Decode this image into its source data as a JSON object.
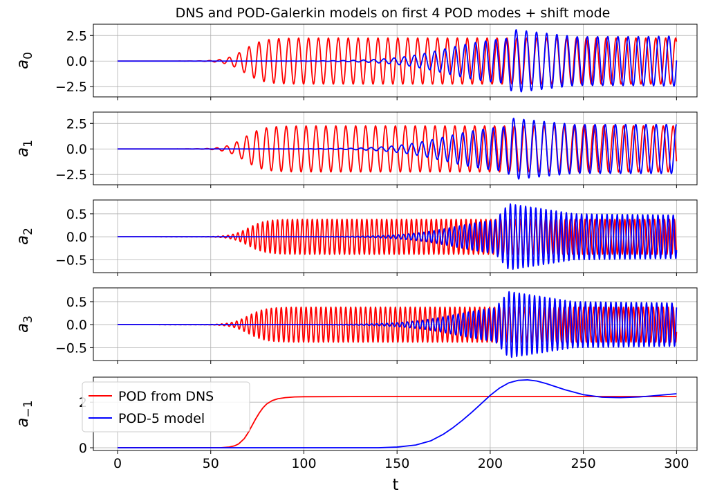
{
  "chart_data": {
    "type": "line",
    "title": "DNS and POD-Galerkin models on first 4 POD modes + shift mode",
    "xlabel": "t",
    "xlim": [
      -13,
      311
    ],
    "xticks": [
      0,
      50,
      100,
      150,
      200,
      250,
      300
    ],
    "xtick_labels": [
      "0",
      "50",
      "100",
      "150",
      "200",
      "250",
      "300"
    ],
    "grid": true,
    "legend": {
      "placement": "bottom-left of last panel",
      "entries": [
        "POD from DNS",
        "POD-5 model"
      ]
    },
    "colors": {
      "dns": "#ff0000",
      "model": "#0000ff"
    },
    "panels": [
      {
        "ylabel": "a",
        "ylabel_sub": "0",
        "ylim": [
          -3.5,
          3.6
        ],
        "yticks": [
          -2.5,
          0.0,
          2.5
        ],
        "ytick_labels": [
          "−2.5",
          "0.0",
          "2.5"
        ],
        "series": [
          {
            "name": "POD from DNS",
            "color": "#ff0000",
            "model": "osc",
            "amplitude": 2.25,
            "onset": 68,
            "rate": 0.2,
            "omega": 1.18,
            "phase": 0.0,
            "envelope": []
          },
          {
            "name": "POD-5 model",
            "color": "#0000ff",
            "model": "osc",
            "amplitude": 2.4,
            "onset": 176,
            "rate": 0.07,
            "omega": 1.15,
            "phase": 0.6,
            "envelope": [
              [
                200,
                0.0
              ],
              [
                212,
                3.1
              ],
              [
                250,
                2.3
              ],
              [
                300,
                2.45
              ]
            ]
          }
        ]
      },
      {
        "ylabel": "a",
        "ylabel_sub": "1",
        "ylim": [
          -3.5,
          3.6
        ],
        "yticks": [
          -2.5,
          0.0,
          2.5
        ],
        "ytick_labels": [
          "−2.5",
          "0.0",
          "2.5"
        ],
        "series": [
          {
            "name": "POD from DNS",
            "color": "#ff0000",
            "model": "osc",
            "amplitude": 2.25,
            "onset": 68,
            "rate": 0.2,
            "omega": 1.18,
            "phase": 1.57,
            "envelope": []
          },
          {
            "name": "POD-5 model",
            "color": "#0000ff",
            "model": "osc",
            "amplitude": 2.4,
            "onset": 176,
            "rate": 0.07,
            "omega": 1.15,
            "phase": 2.17,
            "envelope": [
              [
                200,
                0.0
              ],
              [
                212,
                3.0
              ],
              [
                250,
                2.3
              ],
              [
                300,
                2.4
              ]
            ]
          }
        ]
      },
      {
        "ylabel": "a",
        "ylabel_sub": "2",
        "ylim": [
          -0.78,
          0.8
        ],
        "yticks": [
          -0.5,
          0.0,
          0.5
        ],
        "ytick_labels": [
          "−0.5",
          "0.0",
          "0.5"
        ],
        "series": [
          {
            "name": "POD from DNS",
            "color": "#ff0000",
            "model": "osc",
            "amplitude": 0.38,
            "onset": 70,
            "rate": 0.22,
            "omega": 2.36,
            "phase": 0.0,
            "envelope": []
          },
          {
            "name": "POD-5 model",
            "color": "#0000ff",
            "model": "osc",
            "amplitude": 0.45,
            "onset": 182,
            "rate": 0.07,
            "omega": 2.3,
            "phase": 0.5,
            "envelope": [
              [
                195,
                0.0
              ],
              [
                210,
                0.72
              ],
              [
                245,
                0.5
              ],
              [
                300,
                0.47
              ]
            ]
          }
        ]
      },
      {
        "ylabel": "a",
        "ylabel_sub": "3",
        "ylim": [
          -0.78,
          0.8
        ],
        "yticks": [
          -0.5,
          0.0,
          0.5
        ],
        "ytick_labels": [
          "−0.5",
          "0.0",
          "0.5"
        ],
        "series": [
          {
            "name": "POD from DNS",
            "color": "#ff0000",
            "model": "osc",
            "amplitude": 0.38,
            "onset": 70,
            "rate": 0.22,
            "omega": 2.36,
            "phase": 1.57,
            "envelope": []
          },
          {
            "name": "POD-5 model",
            "color": "#0000ff",
            "model": "osc",
            "amplitude": 0.45,
            "onset": 182,
            "rate": 0.07,
            "omega": 2.3,
            "phase": 2.07,
            "envelope": [
              [
                195,
                0.0
              ],
              [
                210,
                0.72
              ],
              [
                245,
                0.5
              ],
              [
                300,
                0.47
              ]
            ]
          }
        ]
      },
      {
        "ylabel": "a",
        "ylabel_sub": "−1",
        "ylim": [
          -0.12,
          3.1
        ],
        "yticks": [
          0,
          2
        ],
        "ytick_labels": [
          "0",
          "2"
        ],
        "series": [
          {
            "name": "POD from DNS",
            "color": "#ff0000",
            "model": "points",
            "points": [
              [
                0,
                0.0
              ],
              [
                55,
                0.0
              ],
              [
                60,
                0.03
              ],
              [
                63,
                0.09
              ],
              [
                65,
                0.17
              ],
              [
                68,
                0.4
              ],
              [
                70,
                0.65
              ],
              [
                72,
                0.95
              ],
              [
                74,
                1.25
              ],
              [
                76,
                1.52
              ],
              [
                78,
                1.75
              ],
              [
                80,
                1.92
              ],
              [
                83,
                2.07
              ],
              [
                86,
                2.15
              ],
              [
                90,
                2.2
              ],
              [
                95,
                2.23
              ],
              [
                100,
                2.24
              ],
              [
                150,
                2.25
              ],
              [
                300,
                2.25
              ]
            ]
          },
          {
            "name": "POD-5 model",
            "color": "#0000ff",
            "model": "points",
            "points": [
              [
                0,
                0.0
              ],
              [
                140,
                0.0
              ],
              [
                150,
                0.03
              ],
              [
                160,
                0.12
              ],
              [
                168,
                0.3
              ],
              [
                175,
                0.6
              ],
              [
                180,
                0.88
              ],
              [
                185,
                1.2
              ],
              [
                190,
                1.55
              ],
              [
                195,
                1.92
              ],
              [
                200,
                2.3
              ],
              [
                205,
                2.62
              ],
              [
                210,
                2.85
              ],
              [
                215,
                2.96
              ],
              [
                220,
                2.98
              ],
              [
                225,
                2.93
              ],
              [
                230,
                2.82
              ],
              [
                240,
                2.55
              ],
              [
                250,
                2.33
              ],
              [
                260,
                2.22
              ],
              [
                270,
                2.2
              ],
              [
                280,
                2.23
              ],
              [
                290,
                2.3
              ],
              [
                300,
                2.37
              ]
            ]
          }
        ]
      }
    ]
  }
}
